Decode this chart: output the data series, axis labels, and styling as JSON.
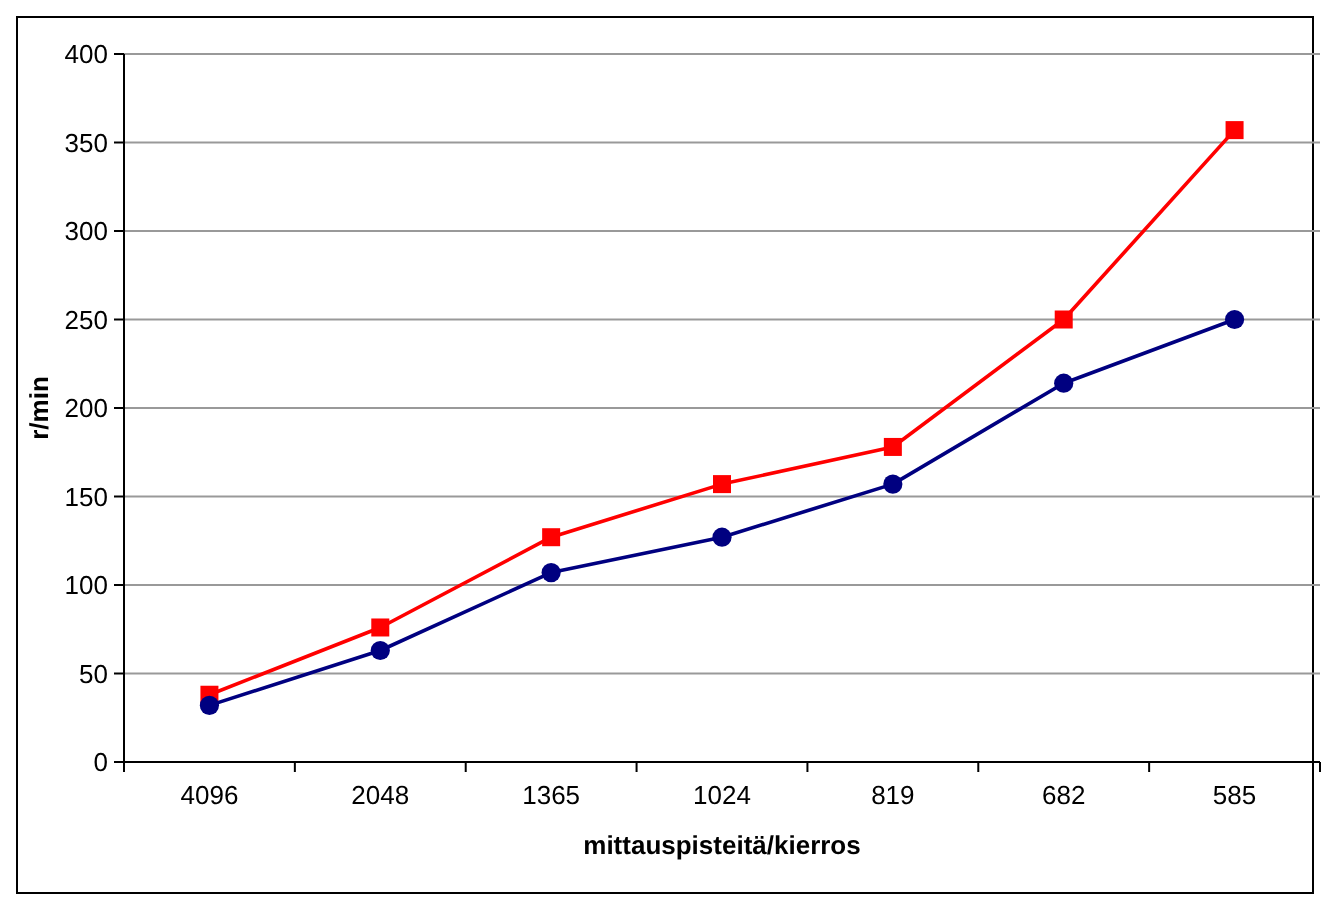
{
  "chart_data": {
    "type": "line",
    "xlabel": "mittauspisteitä/kierros",
    "ylabel": "r/min",
    "categories": [
      "4096",
      "2048",
      "1365",
      "1024",
      "819",
      "682",
      "585"
    ],
    "series": [
      {
        "color": "#ff0000",
        "marker": "square",
        "values": [
          38,
          76,
          127,
          157,
          178,
          250,
          357
        ]
      },
      {
        "color": "#000080",
        "marker": "circle",
        "values": [
          32,
          63,
          107,
          127,
          157,
          214,
          250
        ]
      }
    ],
    "ylim": [
      0,
      400
    ],
    "yticks": [
      0,
      50,
      100,
      150,
      200,
      250,
      300,
      350,
      400
    ],
    "grid": "y"
  }
}
